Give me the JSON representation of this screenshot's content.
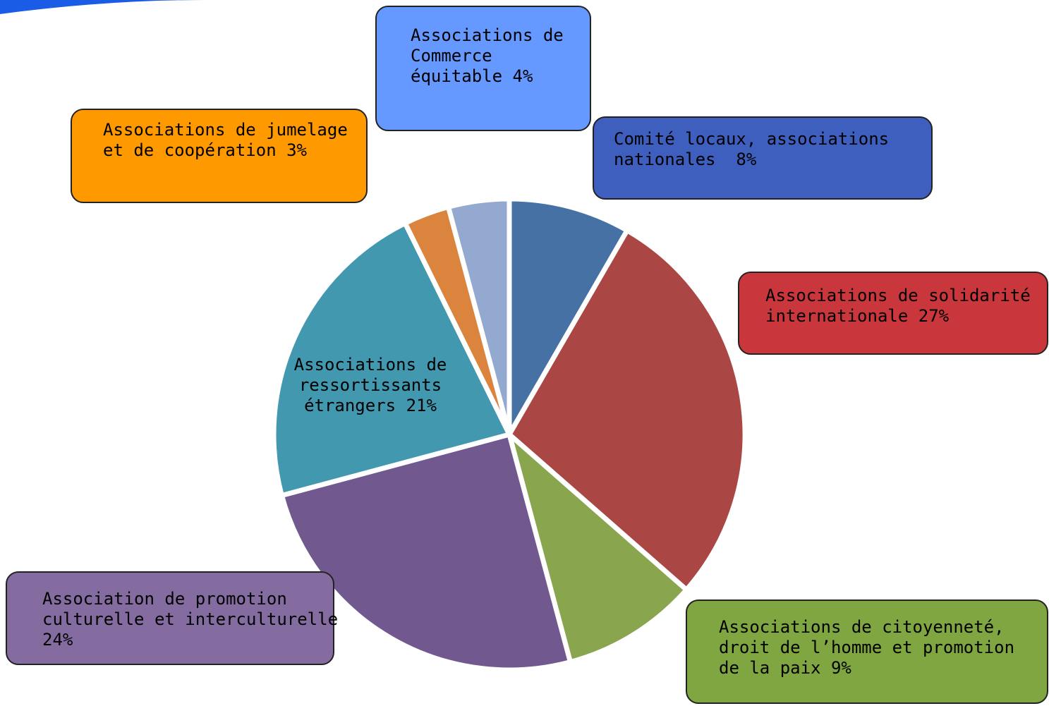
{
  "chart_data": {
    "type": "pie",
    "categories": [
      "Comité locaux, associations nationales ",
      "Associations de solidarité internationale",
      "Associations de citoyenneté, droit de l’homme et promotion de la paix",
      "Association de promotion culturelle et interculturelle",
      "Associations de ressortissants étrangers",
      "Associations de jumelage et de coopération",
      "Associations de Commerce équitable"
    ],
    "values": [
      8,
      27,
      9,
      24,
      21,
      3,
      4
    ],
    "value_labels": [
      "8%",
      "27%",
      "9%",
      "24%",
      "21%",
      "3%",
      "4%"
    ],
    "colors": [
      "#4571a5",
      "#aa4644",
      "#89a54e",
      "#71588f",
      "#4198af",
      "#db843d",
      "#93a9cf"
    ],
    "label_colors": [
      "#3f5fbf",
      "#c9373c",
      "#7fa640",
      "#856ca0",
      null,
      "#ff9900",
      "#6699ff"
    ]
  }
}
